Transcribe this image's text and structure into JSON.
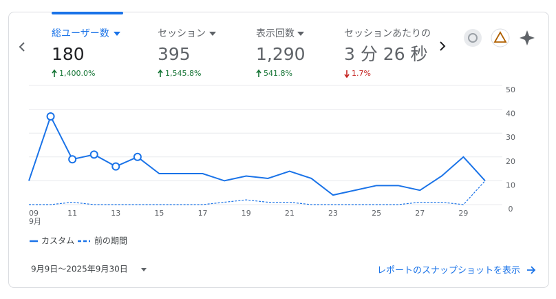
{
  "metrics": [
    {
      "label": "総ユーザー数",
      "value": "180",
      "change": "1,400.0%",
      "direction": "up"
    },
    {
      "label": "セッション",
      "value": "395",
      "change": "1,545.8%",
      "direction": "up"
    },
    {
      "label": "表示回数",
      "value": "1,290",
      "change": "541.8%",
      "direction": "up"
    },
    {
      "label": "セッションあたりの",
      "value": "3 分 26 秒",
      "change": "1.7%",
      "direction": "down"
    }
  ],
  "chart_data": {
    "type": "line",
    "categories": [
      "09",
      null,
      "11",
      null,
      "13",
      null,
      "15",
      null,
      "17",
      null,
      "19",
      null,
      "21",
      null,
      "23",
      null,
      "25",
      null,
      "27",
      null,
      "29",
      null
    ],
    "month_label": "9月",
    "series": [
      {
        "name": "カスタム",
        "color": "#1a73e8",
        "style": "solid",
        "values": [
          10,
          37,
          19,
          21,
          16,
          20,
          13,
          13,
          13,
          10,
          12,
          11,
          14,
          11,
          4,
          6,
          8,
          8,
          6,
          12,
          20,
          10
        ],
        "markers": [
          false,
          true,
          true,
          true,
          true,
          true,
          false,
          false,
          false,
          false,
          false,
          false,
          false,
          false,
          false,
          false,
          false,
          false,
          false,
          false,
          false,
          false
        ]
      },
      {
        "name": "前の期間",
        "color": "#1a73e8",
        "style": "dashed",
        "values": [
          0,
          0,
          1,
          0,
          0,
          0,
          0,
          0,
          0,
          1,
          2,
          1,
          1,
          0,
          0,
          0,
          0,
          0,
          1,
          1,
          0,
          10
        ]
      }
    ],
    "ylim": [
      0,
      50
    ],
    "yticks": [
      0,
      10,
      20,
      30,
      40,
      50
    ],
    "grid": true
  },
  "footer": {
    "date_range": "9月9日～2025年9月30日",
    "link": "レポートのスナップショットを表示"
  }
}
